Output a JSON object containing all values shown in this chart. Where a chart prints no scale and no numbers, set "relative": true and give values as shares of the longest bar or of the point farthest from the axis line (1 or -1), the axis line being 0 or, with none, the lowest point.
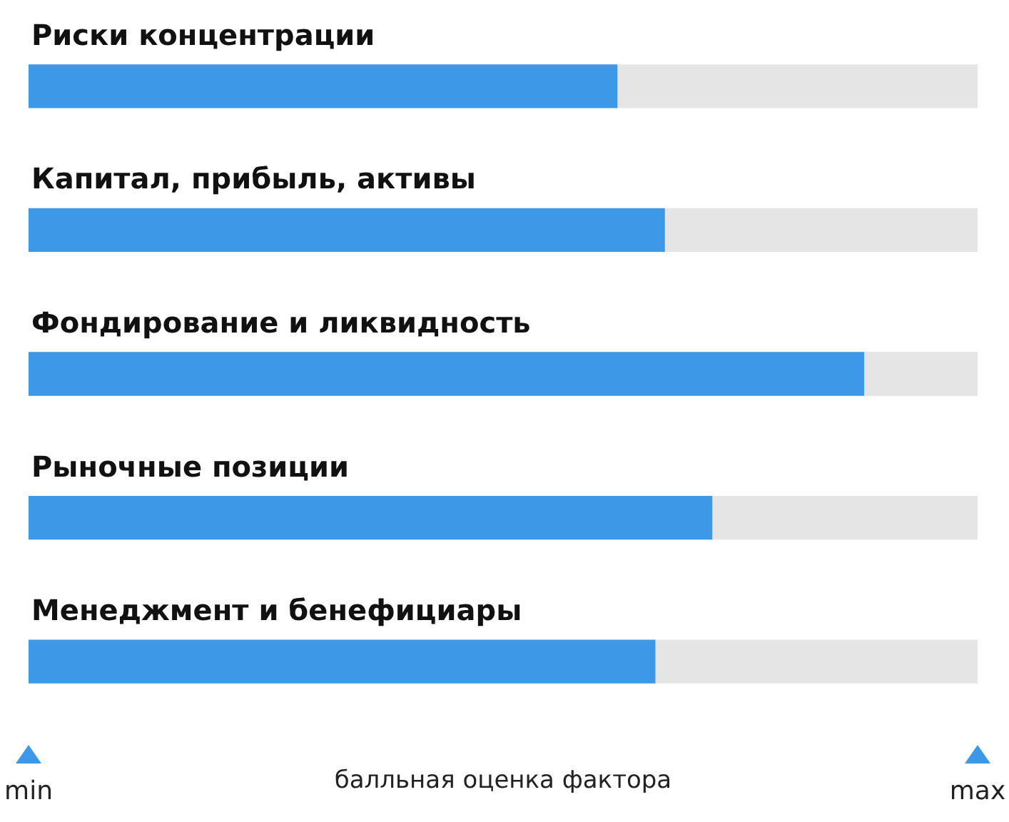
{
  "chart_data": {
    "type": "bar",
    "orientation": "horizontal",
    "relative": true,
    "stacked": true,
    "xlabel": "балльная оценка фактора",
    "categories": [
      "Риски концентрации",
      "Капитал, прибыль, активы",
      "Фондирование и ликвидность",
      "Рыночные позиции",
      "Менеджмент и бенефициары"
    ],
    "series": [
      {
        "color": "#3d99e8",
        "values": [
          0.62,
          0.67,
          0.88,
          0.72,
          0.66
        ]
      },
      {
        "color": "#e5e5e5",
        "values": [
          0.38,
          0.33,
          0.12,
          0.28,
          0.34
        ]
      }
    ],
    "annotations": [
      "min",
      "max"
    ],
    "legend": false
  }
}
